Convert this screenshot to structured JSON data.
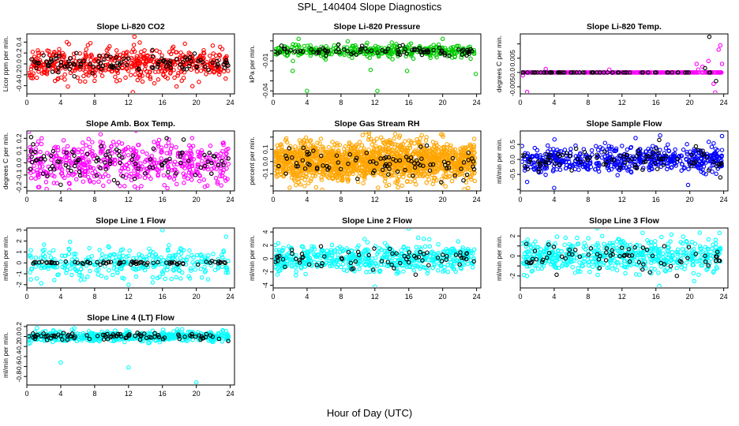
{
  "title": "SPL_140404  Slope Diagnostics",
  "x_axis_label": "Hour of Day (UTC)",
  "chart_data": [
    {
      "type": "scatter",
      "title": "Slope Li-820 CO2",
      "ylabel": "Licor ppm per min.",
      "xlim": [
        0,
        24.5
      ],
      "xticks": [
        0,
        4,
        8,
        12,
        16,
        20,
        24
      ],
      "ylim": [
        -0.55,
        0.55
      ],
      "yticks": [
        -0.4,
        -0.2,
        0.0,
        0.2,
        0.4
      ],
      "ytick_labels": [
        "-0.4",
        "-0.2",
        "0.0",
        "0.2",
        "0.4"
      ],
      "series": [
        {
          "color": "#ff0000",
          "count": 520,
          "spread": 0.14,
          "outliers": [
            [
              12.5,
              -0.52
            ],
            [
              12.4,
              0.57
            ],
            [
              12.7,
              0.5
            ],
            [
              7.5,
              0.38
            ],
            [
              6.3,
              -0.32
            ],
            [
              20.3,
              -0.33
            ]
          ]
        },
        {
          "color": "#000000",
          "count": 110,
          "spread": 0.1,
          "outliers": []
        }
      ]
    },
    {
      "type": "scatter",
      "title": "Slope Li-820 Pressure",
      "ylabel": "kPa per min.",
      "xlim": [
        0,
        24.5
      ],
      "xticks": [
        0,
        4,
        8,
        12,
        16,
        20,
        24
      ],
      "ylim": [
        -0.043,
        0.017
      ],
      "yticks": [
        -0.04,
        -0.03,
        -0.02,
        -0.01,
        0.0,
        0.01
      ],
      "ytick_labels": [
        "-0.04",
        "",
        "",
        "-0.01",
        "",
        ""
      ],
      "series": [
        {
          "color": "#00cc00",
          "count": 400,
          "spread": 0.003,
          "outliers": [
            [
              4.0,
              -0.04
            ],
            [
              12.3,
              -0.04
            ],
            [
              15.8,
              -0.02
            ],
            [
              23.9,
              -0.023
            ],
            [
              3.0,
              0.012
            ],
            [
              20.0,
              0.012
            ],
            [
              11.5,
              -0.019
            ],
            [
              2.3,
              -0.02
            ]
          ]
        },
        {
          "color": "#000000",
          "count": 90,
          "spread": 0.0025,
          "outliers": []
        }
      ]
    },
    {
      "type": "scatter",
      "title": "Slope Li-820 Temp.",
      "ylabel": "degrees C per min.",
      "xlim": [
        0,
        24.5
      ],
      "xticks": [
        0,
        4,
        8,
        12,
        16,
        20,
        24
      ],
      "ylim": [
        -0.0075,
        0.0135
      ],
      "yticks": [
        -0.005,
        0.0,
        0.005,
        0.01
      ],
      "ytick_labels": [
        "-0.005",
        "0.0",
        "0.005",
        ""
      ],
      "series": [
        {
          "color": "#ff00ff",
          "count": 300,
          "spread": 0.0,
          "outliers": [
            [
              0.3,
              -0.001
            ],
            [
              0.8,
              -0.0068
            ],
            [
              21.5,
              0.002
            ],
            [
              22.2,
              0.004
            ],
            [
              23.4,
              0.008
            ],
            [
              23.6,
              0.0095
            ],
            [
              23.8,
              0.003
            ],
            [
              22.8,
              -0.004
            ],
            [
              21.0,
              0.001
            ],
            [
              23.0,
              -0.007
            ],
            [
              20.8,
              0.003
            ],
            [
              10.5,
              0.001
            ],
            [
              3.0,
              0.0012
            ]
          ]
        },
        {
          "color": "#000000",
          "count": 60,
          "spread": 0.0,
          "outliers": [
            [
              22.3,
              0.0125
            ],
            [
              23.1,
              -0.003
            ],
            [
              21.8,
              0.0015
            ]
          ]
        }
      ]
    },
    {
      "type": "scatter",
      "title": "Slope Amb. Box Temp.",
      "ylabel": "degrees C per min.",
      "xlim": [
        0,
        24.5
      ],
      "xticks": [
        0,
        4,
        8,
        12,
        16,
        20,
        24
      ],
      "ylim": [
        -0.23,
        0.26
      ],
      "yticks": [
        -0.2,
        -0.1,
        0.0,
        0.1,
        0.2
      ],
      "ytick_labels": [
        "-0.2",
        "-0.1",
        "0.0",
        "0.1",
        "0.2"
      ],
      "series": [
        {
          "color": "#ff00ff",
          "count": 520,
          "spread": 0.09,
          "outliers": []
        },
        {
          "color": "#000000",
          "count": 90,
          "spread": 0.07,
          "outliers": [
            [
              0.5,
              0.21
            ],
            [
              16.5,
              0.2
            ],
            [
              18.5,
              0.19
            ],
            [
              4.0,
              -0.18
            ]
          ]
        }
      ]
    },
    {
      "type": "scatter",
      "title": "Slope Gas Stream RH",
      "ylabel": "percent per min.",
      "xlim": [
        0,
        24.5
      ],
      "xticks": [
        0,
        4,
        8,
        12,
        16,
        20,
        24
      ],
      "ylim": [
        -0.24,
        0.25
      ],
      "yticks": [
        -0.2,
        -0.1,
        0.0,
        0.1,
        0.2
      ],
      "ytick_labels": [
        "",
        "-0.1",
        "0.0",
        "0.1",
        ""
      ],
      "series": [
        {
          "color": "#ffa500",
          "count": 1600,
          "spread": 0.08,
          "outliers": []
        },
        {
          "color": "#000000",
          "count": 90,
          "spread": 0.06,
          "outliers": []
        }
      ]
    },
    {
      "type": "scatter",
      "title": "Slope Sample Flow",
      "ylabel": "ml/min per min.",
      "xlim": [
        0,
        24.5
      ],
      "xticks": [
        0,
        4,
        8,
        12,
        16,
        20,
        24
      ],
      "ylim": [
        -1.05,
        0.95
      ],
      "yticks": [
        -1.0,
        -0.5,
        0.0,
        0.5
      ],
      "ytick_labels": [
        "",
        "-0.5",
        "0.0",
        "0.5"
      ],
      "series": [
        {
          "color": "#0000ff",
          "count": 560,
          "spread": 0.2,
          "outliers": [
            [
              4.0,
              -0.95
            ],
            [
              0.8,
              -0.75
            ],
            [
              23.8,
              0.78
            ],
            [
              19.8,
              -0.85
            ],
            [
              10.0,
              0.55
            ],
            [
              16.5,
              0.8
            ]
          ]
        },
        {
          "color": "#000000",
          "count": 90,
          "spread": 0.18,
          "outliers": [
            [
              16.4,
              0.65
            ],
            [
              23.6,
              -0.6
            ]
          ]
        }
      ]
    },
    {
      "type": "scatter",
      "title": "Slope Line 1 Flow",
      "ylabel": "ml/min per min.",
      "xlim": [
        0,
        24.5
      ],
      "xticks": [
        0,
        4,
        8,
        12,
        16,
        20,
        24
      ],
      "ylim": [
        -2.3,
        3.2
      ],
      "yticks": [
        -2,
        -1,
        0,
        1,
        2,
        3
      ],
      "ytick_labels": [
        "-2",
        "-1",
        "0",
        "1",
        "2",
        "3"
      ],
      "series": [
        {
          "color": "#00ffff",
          "count": 330,
          "spread": 0.75,
          "outliers": [
            [
              16.0,
              3.0
            ],
            [
              23.5,
              2.4
            ],
            [
              12.0,
              -2.0
            ]
          ]
        },
        {
          "color": "#000000",
          "count": 70,
          "spread": 0.08,
          "outliers": []
        }
      ]
    },
    {
      "type": "scatter",
      "title": "Slope Line 2 Flow",
      "ylabel": "ml/min per min.",
      "xlim": [
        0,
        24.5
      ],
      "xticks": [
        0,
        4,
        8,
        12,
        16,
        20,
        24
      ],
      "ylim": [
        -4.4,
        4.6
      ],
      "yticks": [
        -4,
        -2,
        0,
        2,
        4
      ],
      "ytick_labels": [
        "-4",
        "-2",
        "0",
        "2",
        "4"
      ],
      "series": [
        {
          "color": "#00ffff",
          "count": 550,
          "spread": 1.0,
          "outliers": [
            [
              16.0,
              4.5
            ],
            [
              12.0,
              -4.2
            ],
            [
              0.5,
              -2.4
            ]
          ]
        },
        {
          "color": "#000000",
          "count": 70,
          "spread": 0.9,
          "outliers": []
        }
      ]
    },
    {
      "type": "scatter",
      "title": "Slope Line 3 Flow",
      "ylabel": "ml/min per min.",
      "xlim": [
        0,
        24.5
      ],
      "xticks": [
        0,
        4,
        8,
        12,
        16,
        20,
        24
      ],
      "ylim": [
        -3.2,
        2.8
      ],
      "yticks": [
        -2,
        -1,
        0,
        1,
        2
      ],
      "ytick_labels": [
        "-2",
        "",
        "0",
        "",
        "2"
      ],
      "series": [
        {
          "color": "#00ffff",
          "count": 550,
          "spread": 0.8,
          "outliers": [
            [
              16.4,
              -3.0
            ],
            [
              0.8,
              -2.0
            ],
            [
              23.5,
              2.3
            ]
          ]
        },
        {
          "color": "#000000",
          "count": 70,
          "spread": 0.7,
          "outliers": []
        }
      ]
    },
    {
      "type": "scatter",
      "title": "Slope Line 4 (LT) Flow",
      "ylabel": "ml/min per min.",
      "xlim": [
        0,
        24.5
      ],
      "xticks": [
        0,
        4,
        8,
        12,
        16,
        20,
        24
      ],
      "ylim": [
        -0.97,
        0.23
      ],
      "yticks": [
        -0.8,
        -0.6,
        -0.4,
        -0.2,
        0.0,
        0.2
      ],
      "ytick_labels": [
        "-0.8",
        "-0.6",
        "-0.4",
        "-0.2",
        "0.0",
        "0.2"
      ],
      "series": [
        {
          "color": "#00ffff",
          "count": 560,
          "spread": 0.05,
          "outliers": [
            [
              4.0,
              -0.52
            ],
            [
              12.0,
              -0.62
            ],
            [
              20.0,
              -0.92
            ],
            [
              1.2,
              0.17
            ]
          ]
        },
        {
          "color": "#000000",
          "count": 90,
          "spread": 0.04,
          "outliers": []
        }
      ]
    }
  ]
}
